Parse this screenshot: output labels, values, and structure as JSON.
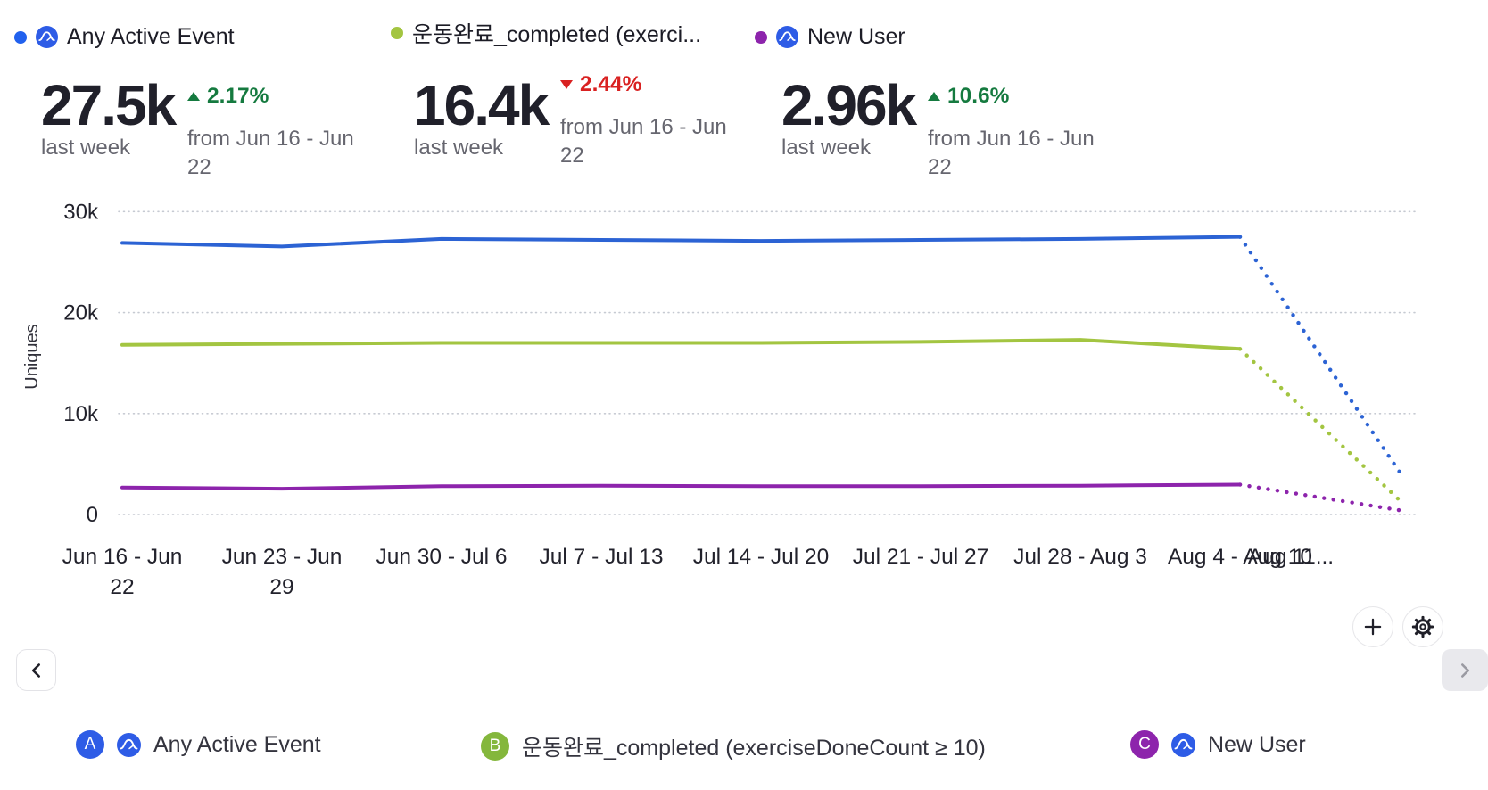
{
  "top_legend": [
    {
      "label": "Any Active Event",
      "dot_color": "#2161ee",
      "has_amp_icon": true
    },
    {
      "label": "운동완료_completed (exerci...",
      "dot_color": "#a3c541",
      "has_amp_icon": false
    },
    {
      "label": "New User",
      "dot_color": "#8d24ac",
      "has_amp_icon": true
    }
  ],
  "metrics": [
    {
      "value": "27.5k",
      "period": "last week",
      "delta": "2.17%",
      "direction": "up",
      "compare": "from Jun 16 - Jun 22"
    },
    {
      "value": "16.4k",
      "period": "last week",
      "delta": "2.44%",
      "direction": "down",
      "compare": "from Jun 16 - Jun 22"
    },
    {
      "value": "2.96k",
      "period": "last week",
      "delta": "10.6%",
      "direction": "up",
      "compare": "from Jun 16 - Jun 22"
    }
  ],
  "chart_data": {
    "type": "line",
    "title": "",
    "xlabel": "",
    "ylabel": "Uniques",
    "ylim": [
      0,
      30000
    ],
    "y_ticks": [
      {
        "label": "30k",
        "value": 30000
      },
      {
        "label": "20k",
        "value": 20000
      },
      {
        "label": "10k",
        "value": 10000
      },
      {
        "label": "0",
        "value": 0
      }
    ],
    "grid": "horizontal-dotted",
    "legend_position": "bottom",
    "categories": [
      "Jun 16 - Jun 22",
      "Jun 23 - Jun 29",
      "Jun 30 - Jul 6",
      "Jul 7 - Jul 13",
      "Jul 14 - Jul 20",
      "Jul 21 - Jul 27",
      "Jul 28 - Aug 3",
      "Aug 4 - Aug 10",
      "Aug 11..."
    ],
    "series": [
      {
        "name": "Any Active Event",
        "color": "#2c63d4",
        "values": [
          26900,
          26550,
          27300,
          27200,
          27100,
          27200,
          27300,
          27500,
          4200
        ],
        "last_segment_style": "dotted"
      },
      {
        "name": "운동완료_completed (exerciseDoneCount ≥ 10)",
        "color": "#a3c541",
        "values": [
          16800,
          16900,
          17000,
          17000,
          17000,
          17100,
          17300,
          16400,
          1400
        ],
        "last_segment_style": "dotted"
      },
      {
        "name": "New User",
        "color": "#8d24ac",
        "values": [
          2680,
          2550,
          2800,
          2850,
          2800,
          2800,
          2850,
          2960,
          420
        ],
        "last_segment_style": "dotted"
      }
    ]
  },
  "bottom_legend": [
    {
      "badge": "A",
      "badge_color": "#2e5ce6",
      "has_amp_icon": true,
      "label": "Any Active Event"
    },
    {
      "badge": "B",
      "badge_color": "#84b73c",
      "has_amp_icon": false,
      "label": "운동완료_completed (exerciseDoneCount ≥ 10)"
    },
    {
      "badge": "C",
      "badge_color": "#8d24ac",
      "has_amp_icon": true,
      "label": "New User"
    }
  ],
  "icons": {
    "event": "amplitude-event-icon",
    "add": "plus-icon",
    "settings": "gear-icon",
    "prev": "chevron-left-icon",
    "next": "chevron-right-icon"
  },
  "colors": {
    "delta_up": "#157a3f",
    "delta_down": "#d92121",
    "grid": "#c6cad2",
    "axis_text": "#22222c",
    "muted_text": "#66666f",
    "amp_icon_blue": "#2e5ce6"
  }
}
